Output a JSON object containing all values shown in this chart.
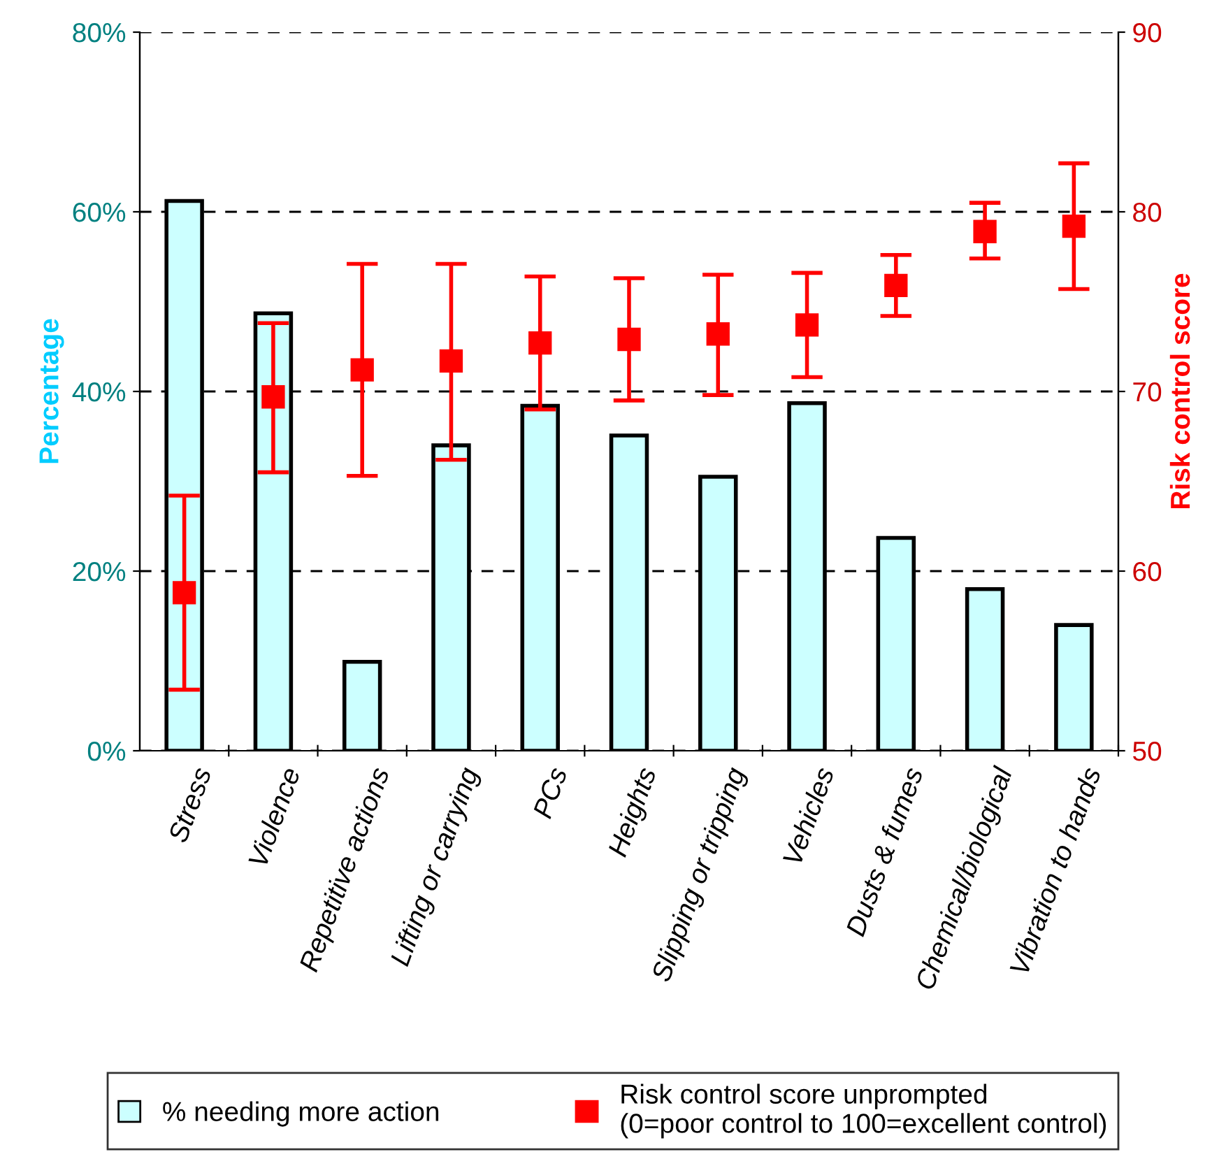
{
  "chart_data": {
    "type": "bar",
    "ylabel": "Percentage",
    "y2label": "Risk control score",
    "categories": [
      "Stress",
      "Violence",
      "Repetitive actions",
      "Lifting or carrying",
      "PCs",
      "Heights",
      "Slipping or tripping",
      "Vehicles",
      "Dusts & fumes",
      "Chemical/biological",
      "Vibration to hands"
    ],
    "series": [
      {
        "name": "% needing more action",
        "color": "#ccffff",
        "values": [
          61.2,
          48.7,
          9.9,
          34.0,
          38.4,
          35.1,
          30.5,
          38.7,
          23.7,
          18.0,
          14.0
        ]
      },
      {
        "name": "Risk control score unprompted\n(0=poor control to 100=excellent control)",
        "type": "scatter",
        "axis": "y2",
        "color": "#ff0000",
        "marker": "square",
        "values": [
          58.8,
          69.7,
          71.2,
          71.7,
          72.7,
          72.9,
          73.2,
          73.7,
          75.9,
          78.9,
          79.2
        ],
        "errors": [
          [
            53.4,
            64.2
          ],
          [
            65.5,
            73.8
          ],
          [
            65.3,
            77.1
          ],
          [
            66.2,
            77.1
          ],
          [
            69.0,
            76.4
          ],
          [
            69.5,
            76.3
          ],
          [
            69.8,
            76.5
          ],
          [
            70.8,
            76.6
          ],
          [
            74.2,
            77.6
          ],
          [
            77.4,
            80.5
          ],
          [
            75.7,
            82.7
          ]
        ]
      }
    ],
    "ylim": [
      0,
      80
    ],
    "yticks": [
      {
        "value": 0,
        "label": "0%"
      },
      {
        "value": 20,
        "label": "20%"
      },
      {
        "value": 40,
        "label": "40%"
      },
      {
        "value": 60,
        "label": "60%"
      },
      {
        "value": 80,
        "label": "80%"
      }
    ],
    "y2lim": [
      50,
      90
    ],
    "y2ticks": [
      50,
      60,
      70,
      80,
      90
    ],
    "grid": "y",
    "legend": "bottom"
  }
}
